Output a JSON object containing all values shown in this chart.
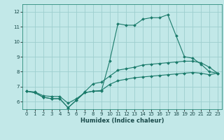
{
  "xlabel": "Humidex (Indice chaleur)",
  "ylabel": "",
  "bg_color": "#c2e8e8",
  "grid_color": "#9ecece",
  "line_color": "#1a7a6a",
  "marker_color": "#1a7a6a",
  "xlim": [
    -0.5,
    23.5
  ],
  "ylim": [
    5.5,
    12.5
  ],
  "yticks": [
    6,
    7,
    8,
    9,
    10,
    11,
    12
  ],
  "xticks": [
    0,
    1,
    2,
    3,
    4,
    5,
    6,
    7,
    8,
    9,
    10,
    11,
    12,
    13,
    14,
    15,
    16,
    17,
    18,
    19,
    20,
    21,
    22,
    23
  ],
  "curves": [
    {
      "x": [
        0,
        1,
        2,
        3,
        4,
        5,
        6,
        7,
        8,
        9,
        10,
        11,
        12,
        13,
        14,
        15,
        16,
        17,
        18,
        19,
        20,
        21,
        22,
        23
      ],
      "y": [
        6.7,
        6.6,
        6.3,
        6.2,
        6.2,
        5.6,
        6.1,
        6.6,
        6.7,
        6.7,
        8.7,
        11.2,
        11.1,
        11.1,
        11.5,
        11.6,
        11.6,
        11.8,
        10.4,
        9.0,
        8.9,
        8.5,
        8.0,
        7.9
      ]
    },
    {
      "x": [
        0,
        1,
        2,
        3,
        4,
        5,
        6,
        7,
        8,
        9,
        10,
        11,
        12,
        13,
        14,
        15,
        16,
        17,
        18,
        19,
        20,
        21,
        22,
        23
      ],
      "y": [
        6.7,
        6.6,
        6.3,
        6.2,
        6.2,
        5.6,
        6.1,
        6.65,
        7.2,
        7.3,
        7.7,
        8.1,
        8.2,
        8.3,
        8.45,
        8.5,
        8.55,
        8.6,
        8.65,
        8.7,
        8.7,
        8.6,
        8.3,
        7.9
      ]
    },
    {
      "x": [
        0,
        1,
        2,
        3,
        4,
        5,
        6,
        7,
        8,
        9,
        10,
        11,
        12,
        13,
        14,
        15,
        16,
        17,
        18,
        19,
        20,
        21,
        22,
        23
      ],
      "y": [
        6.7,
        6.65,
        6.4,
        6.35,
        6.35,
        5.9,
        6.2,
        6.6,
        6.7,
        6.75,
        7.15,
        7.4,
        7.5,
        7.6,
        7.65,
        7.7,
        7.75,
        7.8,
        7.85,
        7.9,
        7.95,
        7.9,
        7.8,
        7.9
      ]
    }
  ],
  "figsize": [
    3.2,
    2.0
  ],
  "dpi": 100
}
